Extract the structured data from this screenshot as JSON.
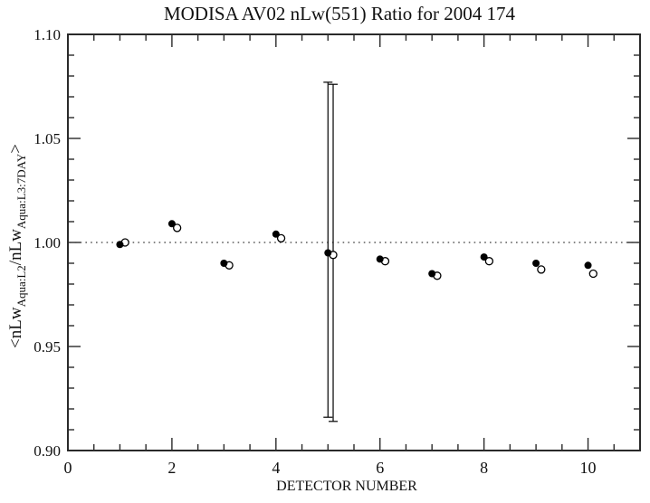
{
  "page": {
    "background": "#ffffff",
    "foreground": "#000000"
  },
  "chart_data": {
    "type": "scatter",
    "title": "MODISA AV02 nLw(551) Ratio for 2004 174",
    "xlabel": "DETECTOR NUMBER",
    "ylabel": "<nLw_Aqua:L2/nLw_Aqua:L3:7DAY>",
    "ylabel_parts": [
      {
        "text": "<nLw",
        "sub": false
      },
      {
        "text": "Aqua:L2",
        "sub": true
      },
      {
        "text": "/nLw",
        "sub": false
      },
      {
        "text": "Aqua:L3:7DAY",
        "sub": true
      },
      {
        "text": ">",
        "sub": false
      }
    ],
    "xlim": [
      0,
      11
    ],
    "ylim": [
      0.9,
      1.1
    ],
    "x_major_ticks": [
      0,
      2,
      4,
      6,
      8,
      10
    ],
    "x_minor_step": 0.5,
    "y_major_ticks": [
      0.9,
      0.95,
      1.0,
      1.05,
      1.1
    ],
    "y_minor_step": 0.01,
    "y_tick_decimals": 2,
    "grid": false,
    "legend": false,
    "axis_color": "#2a2a2a",
    "dotted_line_color": "#3b3b3b",
    "reference_line": {
      "y": 1.0,
      "style": "dotted"
    },
    "series": [
      {
        "name": "filled",
        "marker": "filled-circle",
        "color": "#000000",
        "x": [
          1,
          2,
          3,
          4,
          5,
          6,
          7,
          8,
          9,
          10
        ],
        "y": [
          0.999,
          1.009,
          0.99,
          1.004,
          0.995,
          0.992,
          0.985,
          0.993,
          0.99,
          0.989
        ]
      },
      {
        "name": "open",
        "marker": "open-circle",
        "color": "#000000",
        "x": [
          1.1,
          2.1,
          3.1,
          4.1,
          5.1,
          6.1,
          7.1,
          8.1,
          9.1,
          10.1
        ],
        "y": [
          1.0,
          1.007,
          0.989,
          1.002,
          0.994,
          0.991,
          0.984,
          0.991,
          0.987,
          0.985
        ]
      }
    ],
    "error_bars": [
      {
        "series": "filled",
        "x": 5.0,
        "y": 0.995,
        "y_lo": 0.916,
        "y_hi": 1.077
      },
      {
        "series": "open",
        "x": 5.1,
        "y": 0.994,
        "y_lo": 0.914,
        "y_hi": 1.076
      }
    ]
  }
}
